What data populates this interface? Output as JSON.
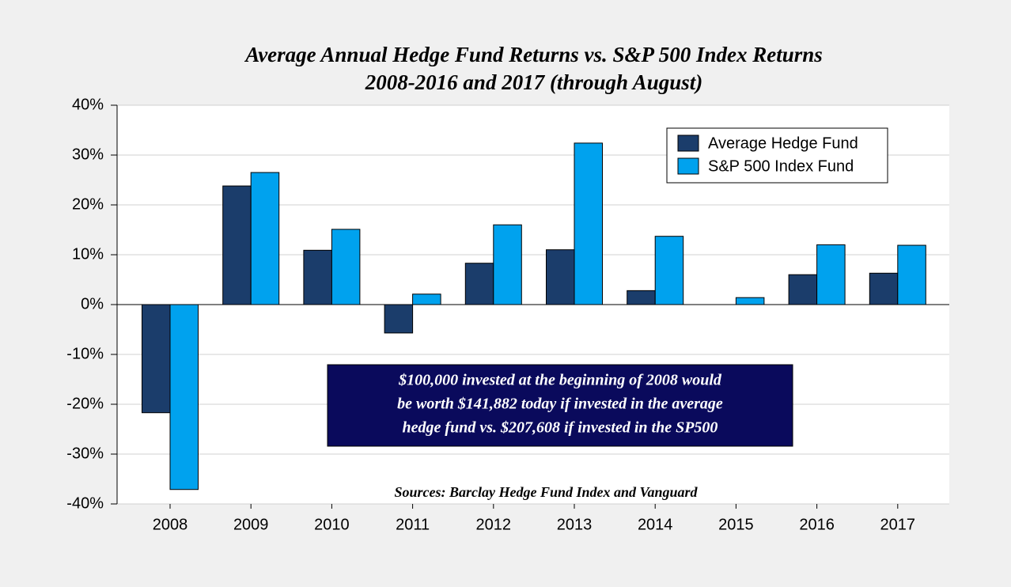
{
  "chart_data": {
    "type": "bar",
    "title": [
      "Average Annual Hedge Fund Returns vs. S&P 500 Index Returns",
      "2008-2016 and 2017 (through August)"
    ],
    "categories": [
      "2008",
      "2009",
      "2010",
      "2011",
      "2012",
      "2013",
      "2014",
      "2015",
      "2016",
      "2017"
    ],
    "series": [
      {
        "name": "Average Hedge Fund",
        "color": "#1b3d6b",
        "values": [
          -21.7,
          23.8,
          10.9,
          -5.7,
          8.3,
          11.0,
          2.8,
          0,
          6.0,
          6.3
        ]
      },
      {
        "name": "S&P 500 Index Fund",
        "color": "#00a2ee",
        "values": [
          -37.1,
          26.5,
          15.1,
          2.1,
          16.0,
          32.4,
          13.7,
          1.4,
          12.0,
          11.9
        ]
      }
    ],
    "ylim": [
      -40,
      40
    ],
    "yticks": [
      {
        "value": -40,
        "label": "-40%"
      },
      {
        "value": -30,
        "label": "-30%"
      },
      {
        "value": -20,
        "label": "-20%"
      },
      {
        "value": -10,
        "label": "-10%"
      },
      {
        "value": 0,
        "label": "0%"
      },
      {
        "value": 10,
        "label": "10%"
      },
      {
        "value": 20,
        "label": "20%"
      },
      {
        "value": 30,
        "label": "30%"
      },
      {
        "value": 40,
        "label": "40%"
      }
    ],
    "grid": true,
    "legend": "upper right",
    "annotation": [
      "$100,000 invested at the beginning of 2008 would",
      "be worth $141,882 today if invested in the average",
      "hedge fund vs. $207,608 if invested in the SP500"
    ],
    "source": "Sources: Barclay Hedge Fund Index and Vanguard"
  }
}
